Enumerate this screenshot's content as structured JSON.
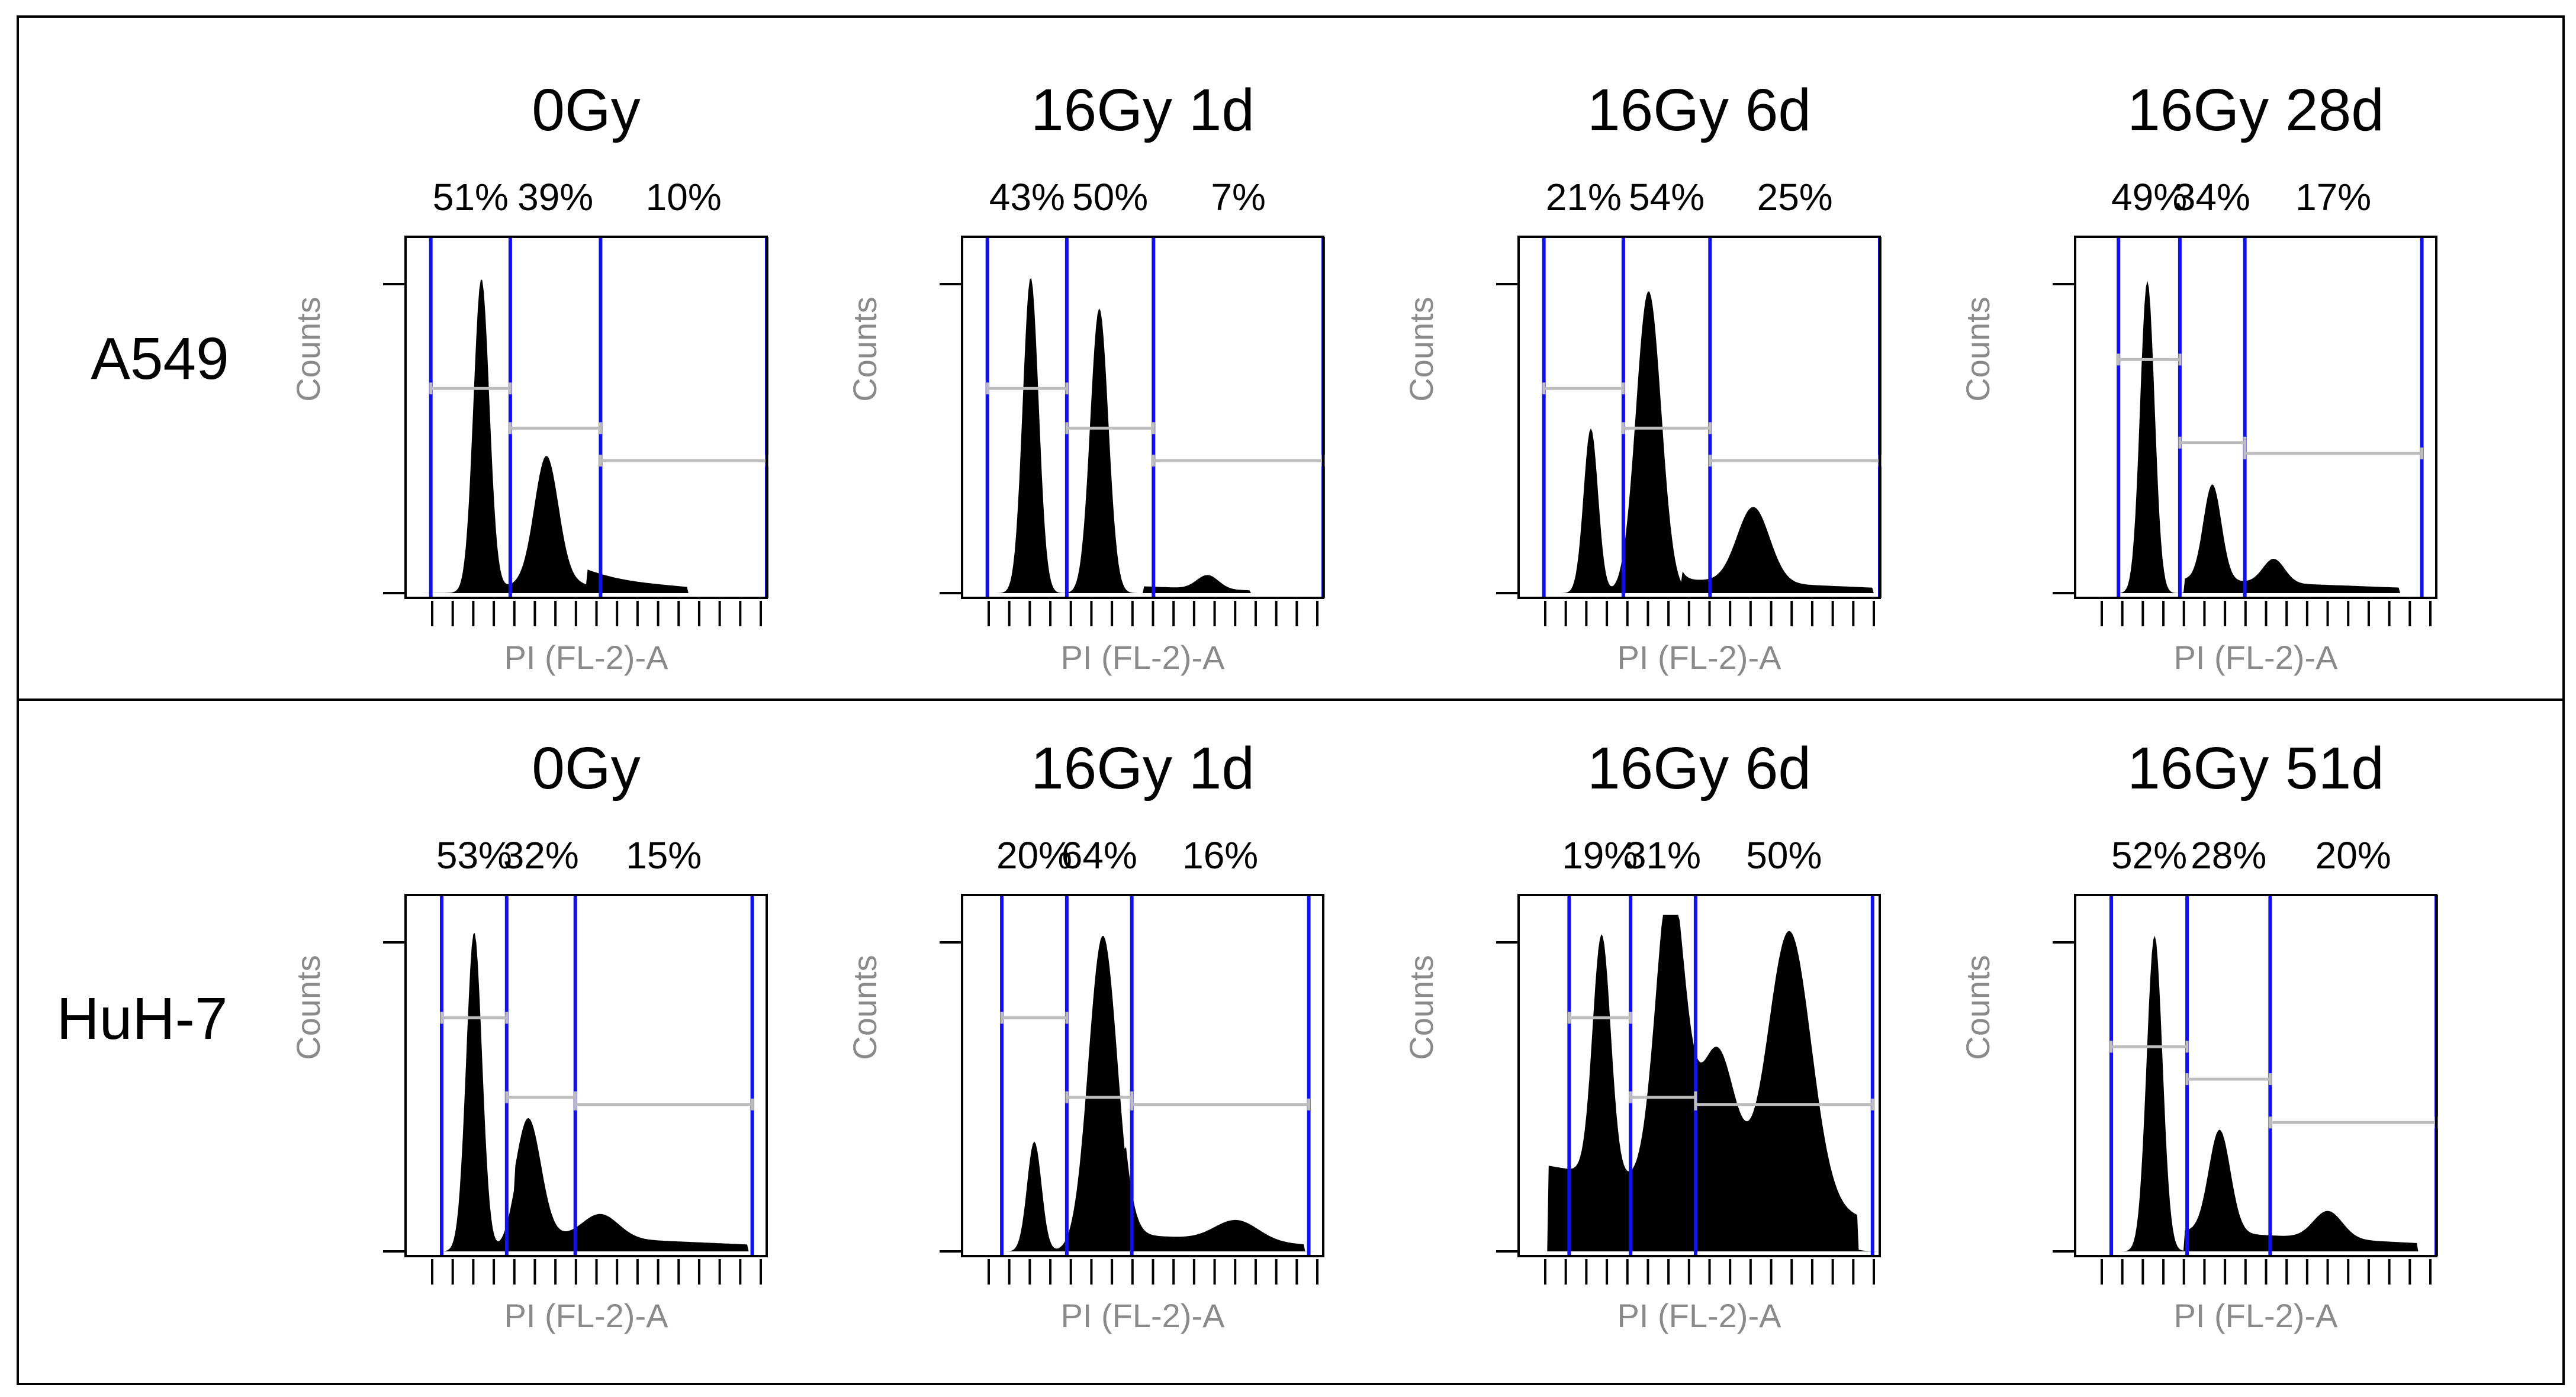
{
  "figure": {
    "colors": {
      "frame": "#000000",
      "histogram_fill": "#000000",
      "gate_line": "#1010f0",
      "gate_marker": "#bdbdbd",
      "axis_label": "#8a8a8a"
    }
  },
  "chart_data": [
    {
      "type": "area",
      "row": "A549",
      "title": "0Gy",
      "xlabel": "PI (FL-2)-A",
      "ylabel": "Counts",
      "percentages": [
        "51%",
        "39%",
        "10%"
      ],
      "gates": [
        0.07,
        0.29,
        0.54,
        1.0
      ],
      "marker_levels": [
        0.42,
        0.53,
        0.62
      ],
      "peaks": [
        {
          "center": 0.21,
          "sigma": 0.022,
          "height": 0.91
        },
        {
          "center": 0.39,
          "sigma": 0.033,
          "height": 0.36
        },
        {
          "center": 0.4,
          "sigma": 0.1,
          "height": 0.04
        }
      ],
      "tail": {
        "start": 0.5,
        "end": 0.78,
        "level": 0.045
      }
    },
    {
      "type": "area",
      "row": "A549",
      "title": "16Gy 1d",
      "xlabel": "PI (FL-2)-A",
      "ylabel": "Counts",
      "percentages": [
        "43%",
        "50%",
        "7%"
      ],
      "gates": [
        0.07,
        0.29,
        0.53,
        1.0
      ],
      "marker_levels": [
        0.42,
        0.53,
        0.62
      ],
      "peaks": [
        {
          "center": 0.19,
          "sigma": 0.022,
          "height": 0.92
        },
        {
          "center": 0.38,
          "sigma": 0.025,
          "height": 0.83
        },
        {
          "center": 0.68,
          "sigma": 0.03,
          "height": 0.04
        }
      ],
      "tail": {
        "start": 0.5,
        "end": 0.8,
        "level": 0.02
      }
    },
    {
      "type": "area",
      "row": "A549",
      "title": "16Gy 6d",
      "xlabel": "PI (FL-2)-A",
      "ylabel": "Counts",
      "percentages": [
        "21%",
        "54%",
        "25%"
      ],
      "gates": [
        0.07,
        0.29,
        0.53,
        1.0
      ],
      "marker_levels": [
        0.42,
        0.53,
        0.62
      ],
      "peaks": [
        {
          "center": 0.2,
          "sigma": 0.02,
          "height": 0.48
        },
        {
          "center": 0.36,
          "sigma": 0.035,
          "height": 0.88
        },
        {
          "center": 0.65,
          "sigma": 0.045,
          "height": 0.22
        }
      ],
      "tail": {
        "start": 0.45,
        "end": 0.98,
        "level": 0.04
      }
    },
    {
      "type": "area",
      "row": "A549",
      "title": "16Gy 28d",
      "xlabel": "PI (FL-2)-A",
      "ylabel": "Counts",
      "percentages": [
        "49%",
        "34%",
        "17%"
      ],
      "gates": [
        0.12,
        0.29,
        0.47,
        0.96
      ],
      "marker_levels": [
        0.34,
        0.57,
        0.6
      ],
      "peaks": [
        {
          "center": 0.2,
          "sigma": 0.02,
          "height": 0.91
        },
        {
          "center": 0.38,
          "sigma": 0.025,
          "height": 0.28
        },
        {
          "center": 0.55,
          "sigma": 0.03,
          "height": 0.07
        }
      ],
      "tail": {
        "start": 0.3,
        "end": 0.9,
        "level": 0.04
      }
    },
    {
      "type": "area",
      "row": "HuH-7",
      "title": "0Gy",
      "xlabel": "PI (FL-2)-A",
      "ylabel": "Counts",
      "percentages": [
        "53%",
        "32%",
        "15%"
      ],
      "gates": [
        0.1,
        0.28,
        0.47,
        0.96
      ],
      "marker_levels": [
        0.34,
        0.56,
        0.58
      ],
      "peaks": [
        {
          "center": 0.19,
          "sigma": 0.022,
          "height": 0.93
        },
        {
          "center": 0.34,
          "sigma": 0.035,
          "height": 0.34
        },
        {
          "center": 0.54,
          "sigma": 0.05,
          "height": 0.07
        }
      ],
      "tail": {
        "start": 0.3,
        "end": 0.95,
        "level": 0.05
      }
    },
    {
      "type": "area",
      "row": "HuH-7",
      "title": "16Gy 1d",
      "xlabel": "PI (FL-2)-A",
      "ylabel": "Counts",
      "percentages": [
        "20%",
        "64%",
        "16%"
      ],
      "gates": [
        0.11,
        0.29,
        0.47,
        0.96
      ],
      "marker_levels": [
        0.34,
        0.56,
        0.58
      ],
      "peaks": [
        {
          "center": 0.2,
          "sigma": 0.02,
          "height": 0.32
        },
        {
          "center": 0.39,
          "sigma": 0.04,
          "height": 0.92
        },
        {
          "center": 0.76,
          "sigma": 0.06,
          "height": 0.06
        }
      ],
      "tail": {
        "start": 0.45,
        "end": 0.95,
        "level": 0.05
      }
    },
    {
      "type": "area",
      "row": "HuH-7",
      "title": "16Gy 6d",
      "xlabel": "PI (FL-2)-A",
      "ylabel": "Counts",
      "percentages": [
        "19%",
        "31%",
        "50%"
      ],
      "gates": [
        0.14,
        0.31,
        0.49,
        0.98
      ],
      "marker_levels": [
        0.34,
        0.56,
        0.58
      ],
      "peaks": [
        {
          "center": 0.23,
          "sigma": 0.025,
          "height": 0.7
        },
        {
          "center": 0.42,
          "sigma": 0.04,
          "height": 0.9
        },
        {
          "center": 0.75,
          "sigma": 0.06,
          "height": 0.8
        },
        {
          "center": 0.55,
          "sigma": 0.05,
          "height": 0.42
        }
      ],
      "tail": {
        "start": 0.08,
        "end": 0.94,
        "level": 0.25
      }
    },
    {
      "type": "area",
      "row": "HuH-7",
      "title": "16Gy 51d",
      "xlabel": "PI (FL-2)-A",
      "ylabel": "Counts",
      "percentages": [
        "52%",
        "28%",
        "20%"
      ],
      "gates": [
        0.1,
        0.31,
        0.54,
        1.0
      ],
      "marker_levels": [
        0.42,
        0.51,
        0.63
      ],
      "peaks": [
        {
          "center": 0.22,
          "sigma": 0.022,
          "height": 0.92
        },
        {
          "center": 0.4,
          "sigma": 0.03,
          "height": 0.3
        },
        {
          "center": 0.7,
          "sigma": 0.04,
          "height": 0.08
        }
      ],
      "tail": {
        "start": 0.3,
        "end": 0.95,
        "level": 0.06
      }
    }
  ]
}
